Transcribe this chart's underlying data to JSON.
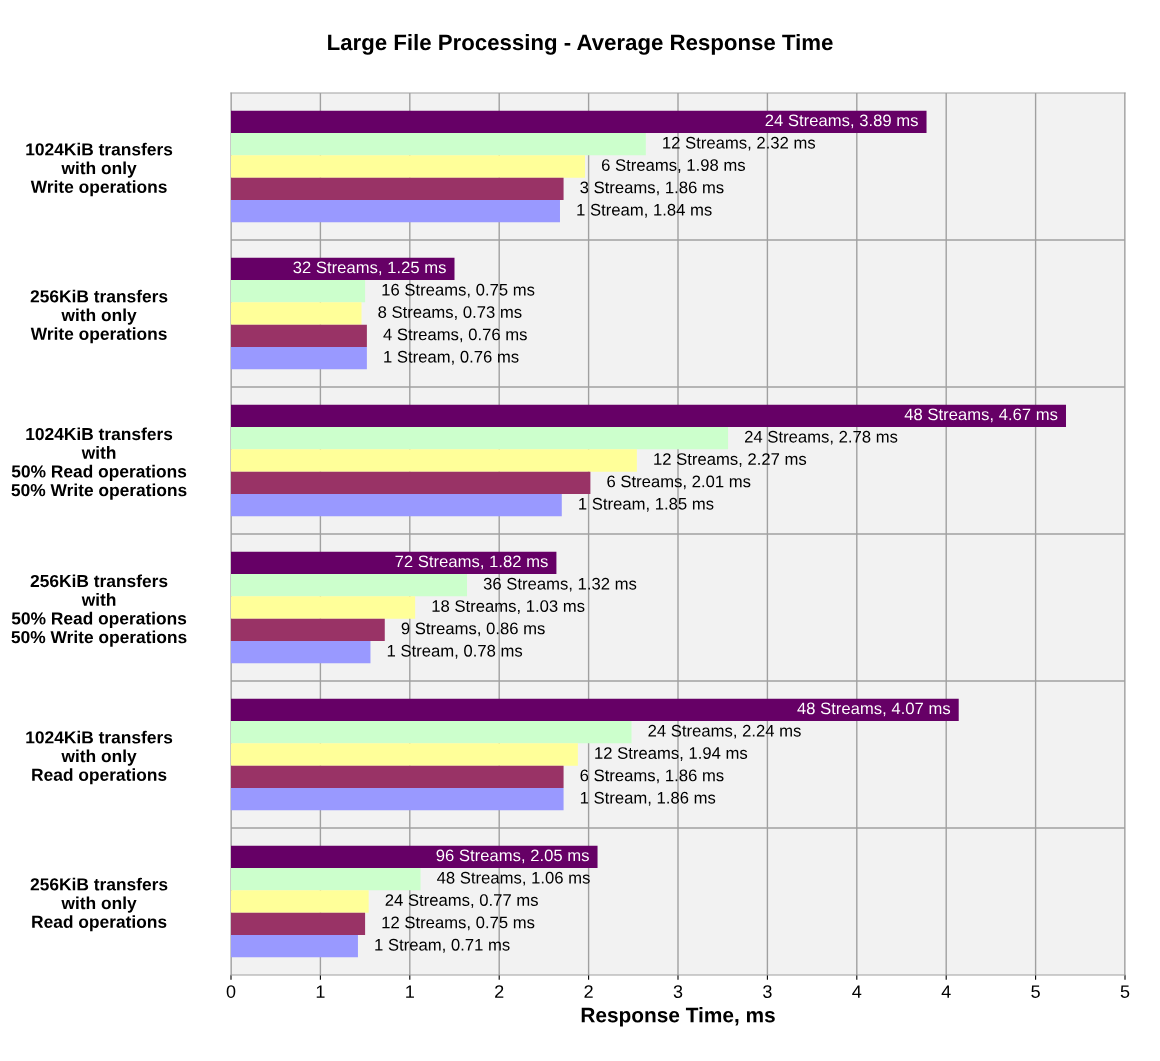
{
  "chart_data": {
    "type": "bar",
    "orientation": "horizontal",
    "title": "Large File Processing - Average Response Time",
    "xlabel": "Response Time, ms",
    "categories": [
      "1024KiB transfers\nwith only\nWrite operations",
      "256KiB transfers\nwith only\nWrite operations",
      "1024KiB transfers\nwith\n50% Read operations\n50% Write operations",
      "256KiB transfers\nwith\n50% Read operations\n50% Write operations",
      "1024KiB transfers\nwith only\nRead operations",
      "256KiB transfers\nwith only\nRead operations"
    ],
    "series": [
      {
        "color": "#660066",
        "values": [
          3.89,
          1.25,
          4.67,
          1.82,
          4.07,
          2.05
        ],
        "value_labels": [
          "24 Streams, 3.89 ms",
          "32 Streams, 1.25 ms",
          "48 Streams, 4.67 ms",
          "72 Streams, 1.82 ms",
          "48 Streams, 4.07 ms",
          "96 Streams, 2.05 ms"
        ]
      },
      {
        "color": "#ccffcc",
        "values": [
          2.32,
          0.75,
          2.78,
          1.32,
          2.24,
          1.06
        ],
        "value_labels": [
          "12 Streams, 2.32 ms",
          "16 Streams, 0.75 ms",
          "24 Streams, 2.78 ms",
          "36 Streams, 1.32 ms",
          "24 Streams, 2.24 ms",
          "48 Streams, 1.06 ms"
        ]
      },
      {
        "color": "#ffff99",
        "values": [
          1.98,
          0.73,
          2.27,
          1.03,
          1.94,
          0.77
        ],
        "value_labels": [
          "6 Streams, 1.98 ms",
          "8 Streams, 0.73 ms",
          "12 Streams, 2.27 ms",
          "18 Streams, 1.03 ms",
          "12 Streams, 1.94 ms",
          "24 Streams, 0.77 ms"
        ]
      },
      {
        "color": "#993366",
        "values": [
          1.86,
          0.76,
          2.01,
          0.86,
          1.86,
          0.75
        ],
        "value_labels": [
          "3 Streams, 1.86 ms",
          "4 Streams, 0.76 ms",
          "6 Streams, 2.01 ms",
          "9 Streams, 0.86 ms",
          "6 Streams, 1.86 ms",
          "12 Streams, 0.75 ms"
        ]
      },
      {
        "color": "#9999ff",
        "values": [
          1.84,
          0.76,
          1.85,
          0.78,
          1.86,
          0.71
        ],
        "value_labels": [
          "1 Stream, 1.84 ms",
          "1 Stream, 0.76 ms",
          "1 Stream, 1.85 ms",
          "1 Stream, 0.78 ms",
          "1 Stream, 1.86 ms",
          "1 Stream, 0.71 ms"
        ]
      }
    ],
    "xlim": [
      0,
      5
    ],
    "xticks": [
      0,
      {
        "value": 0.5,
        "label": "1"
      },
      1,
      {
        "value": 1.5,
        "label": "2"
      },
      2,
      {
        "value": 2.5,
        "label": "3"
      },
      3,
      {
        "value": 3.5,
        "label": "4"
      },
      4,
      {
        "value": 4.5,
        "label": "5"
      },
      5
    ],
    "grid": true,
    "legend": false
  }
}
